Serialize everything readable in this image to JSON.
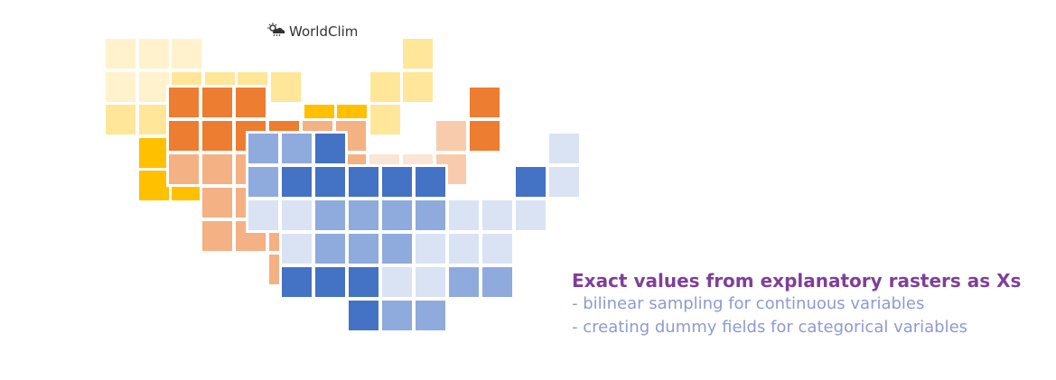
{
  "logo": {
    "text": "WorldClim",
    "icon": "weather-cloud-sun-rain-icon"
  },
  "caption": {
    "title": "Exact values from explanatory rasters as Xs",
    "lines": [
      "- bilinear sampling for continuous variables",
      "- creating dummy fields for categorical variables"
    ]
  },
  "colors": {
    "title": "#7f3f98",
    "subtitle": "#8e9ad0"
  },
  "layers": [
    {
      "name": "yellow-raster",
      "palette": {
        "a": "#fff2cc",
        "b": "#ffe699",
        "c": "#ffc000"
      },
      "grid": [
        "aaa......b",
        "aabbbb..bb",
        "bb....ccb.",
        ".c........",
        ".cc......."
      ]
    },
    {
      "name": "orange-raster",
      "palette": {
        "a": "#ed7d31",
        "b": "#f4b183",
        "c": "#f8cbad",
        "d": "#fbe5d6"
      },
      "grid": [
        "aaa......a",
        "aaaabb..ca",
        "bbb..bddc.",
        ".bbb......",
        ".bbb......",
        "...b......"
      ]
    },
    {
      "name": "blue-raster",
      "palette": {
        "a": "#4472c4",
        "b": "#8faadc",
        "c": "#dae3f3"
      },
      "grid": [
        "bba......c",
        "baaaaa..ac",
        "ccbbbbccc.",
        ".cbbbccc..",
        ".aaaccbb..",
        "...abb...."
      ]
    }
  ]
}
